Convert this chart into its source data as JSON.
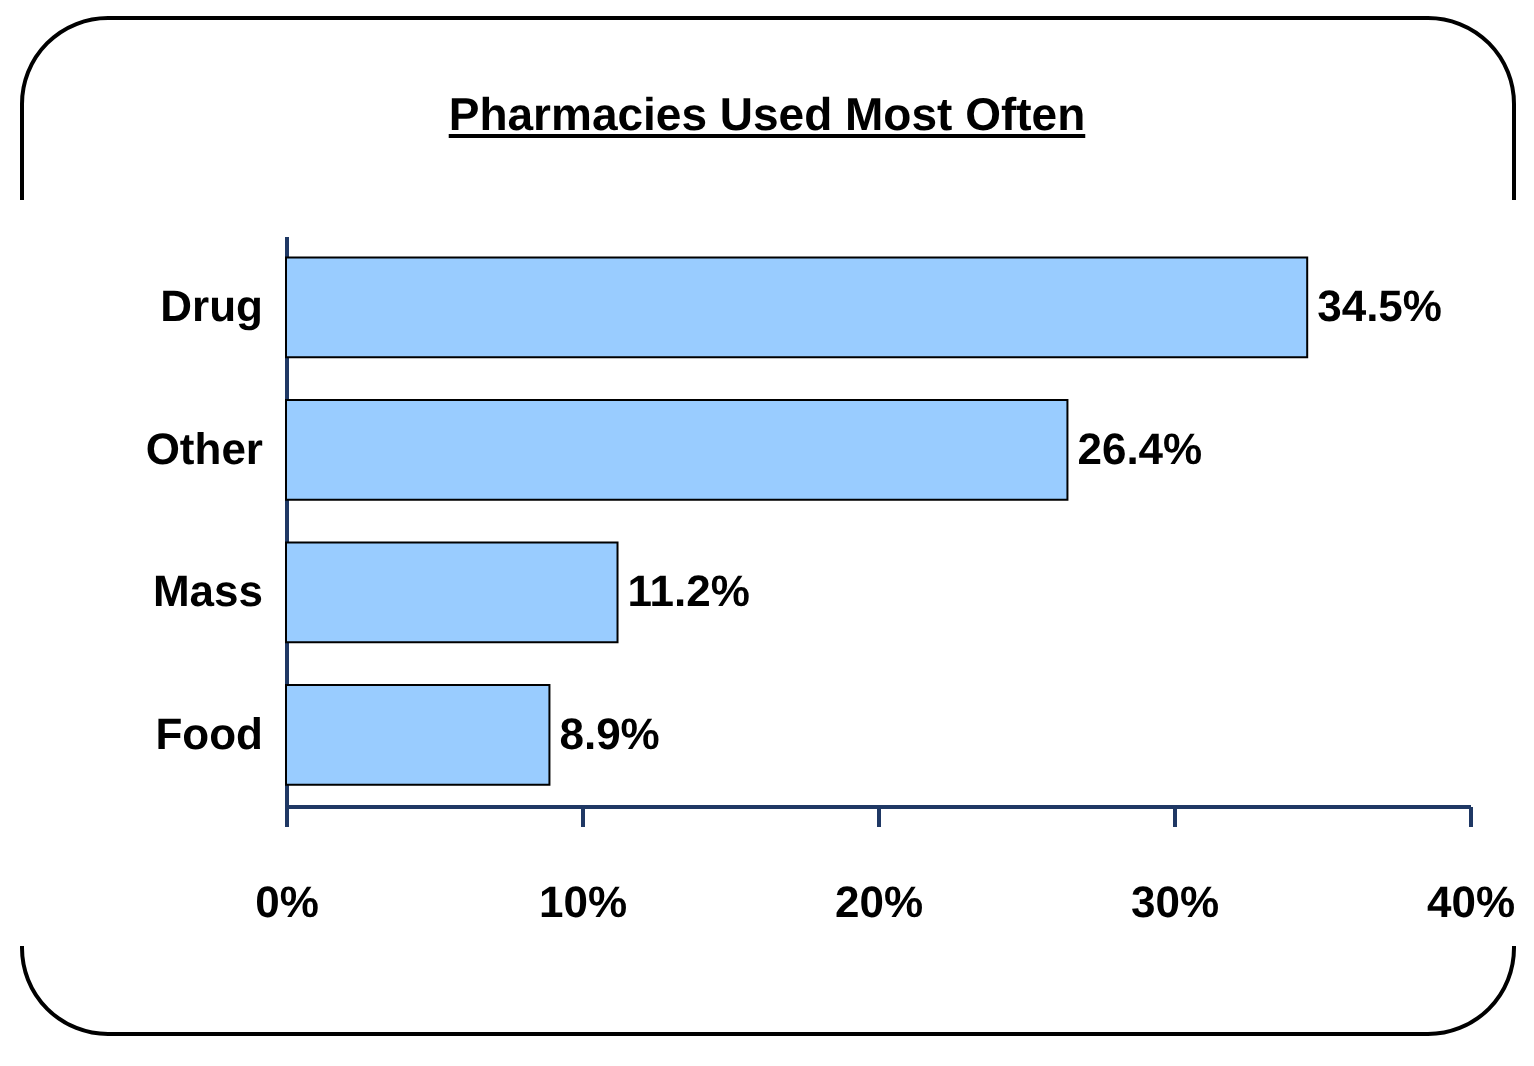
{
  "chart_data": {
    "type": "bar",
    "orientation": "horizontal",
    "title": "Pharmacies Used Most Often",
    "categories": [
      "Drug",
      "Other",
      "Mass",
      "Food"
    ],
    "values": [
      34.5,
      26.4,
      11.2,
      8.9
    ],
    "value_labels": [
      "34.5%",
      "26.4%",
      "11.2%",
      "8.9%"
    ],
    "color": "#99ccff",
    "xlim": [
      0,
      40
    ],
    "xticks": [
      {
        "value": 0,
        "label": "0%"
      },
      {
        "value": 10,
        "label": "10%"
      },
      {
        "value": 20,
        "label": "20%"
      },
      {
        "value": 30,
        "label": "30%"
      },
      {
        "value": 40,
        "label": "40%"
      }
    ],
    "grid": false
  }
}
